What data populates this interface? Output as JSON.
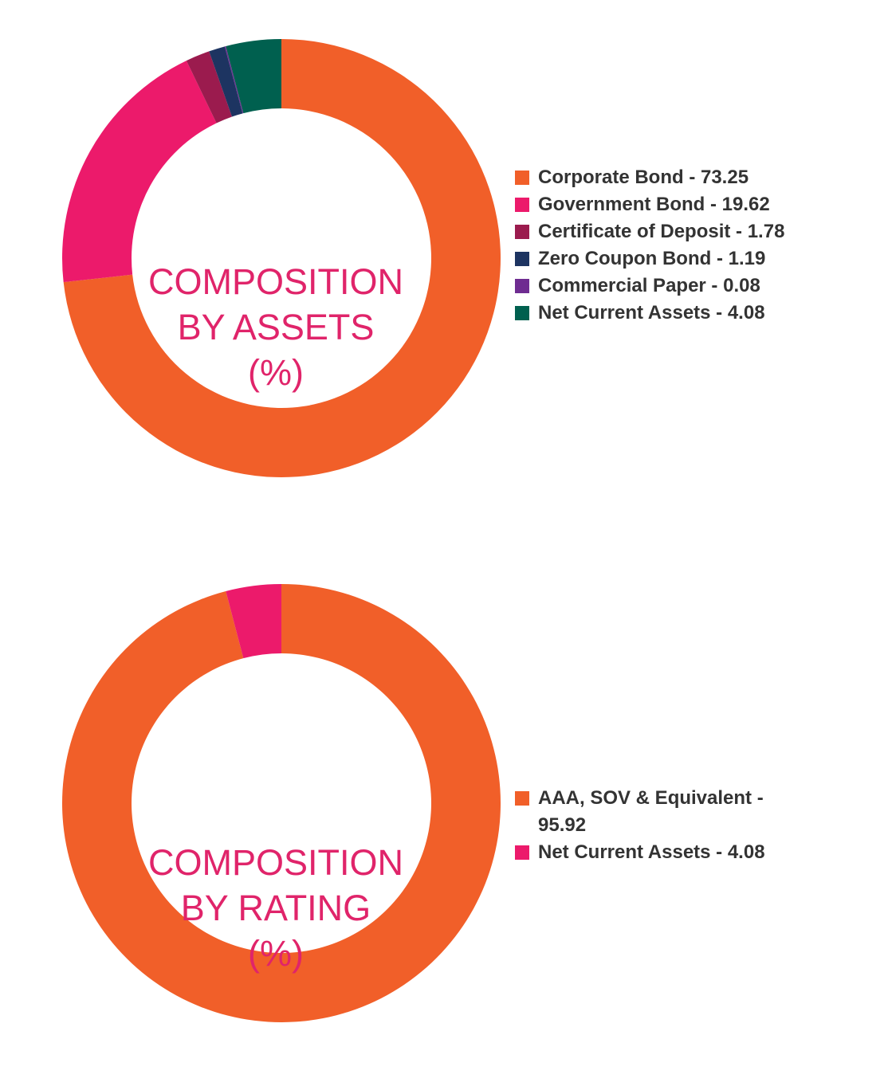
{
  "chart_data": [
    {
      "type": "pie",
      "variant": "donut",
      "center_label": [
        "COMPOSITION",
        "BY ASSETS",
        "(%)"
      ],
      "legend_placement": "right",
      "slices": [
        {
          "label": "Corporate Bond - 73.25",
          "value": 73.25,
          "color": "#f15f29"
        },
        {
          "label": "Government Bond - 19.62",
          "value": 19.62,
          "color": "#ec1a6b"
        },
        {
          "label": "Certificate of Deposit - 1.78",
          "value": 1.78,
          "color": "#9b1b4e"
        },
        {
          "label": "Zero Coupon Bond - 1.19",
          "value": 1.19,
          "color": "#1d3461"
        },
        {
          "label": "Commercial Paper - 0.08",
          "value": 0.08,
          "color": "#6f2c91"
        },
        {
          "label": "Net Current Assets - 4.08",
          "value": 4.08,
          "color": "#00604f"
        }
      ]
    },
    {
      "type": "pie",
      "variant": "donut",
      "center_label": [
        "COMPOSITION",
        "BY RATING",
        "(%)"
      ],
      "legend_placement": "right",
      "slices": [
        {
          "label": "AAA, SOV & Equivalent - 95.92",
          "value": 95.92,
          "color": "#f15f29"
        },
        {
          "label": "Net Current Assets - 4.08",
          "value": 4.08,
          "color": "#ec1a6b"
        }
      ]
    }
  ]
}
